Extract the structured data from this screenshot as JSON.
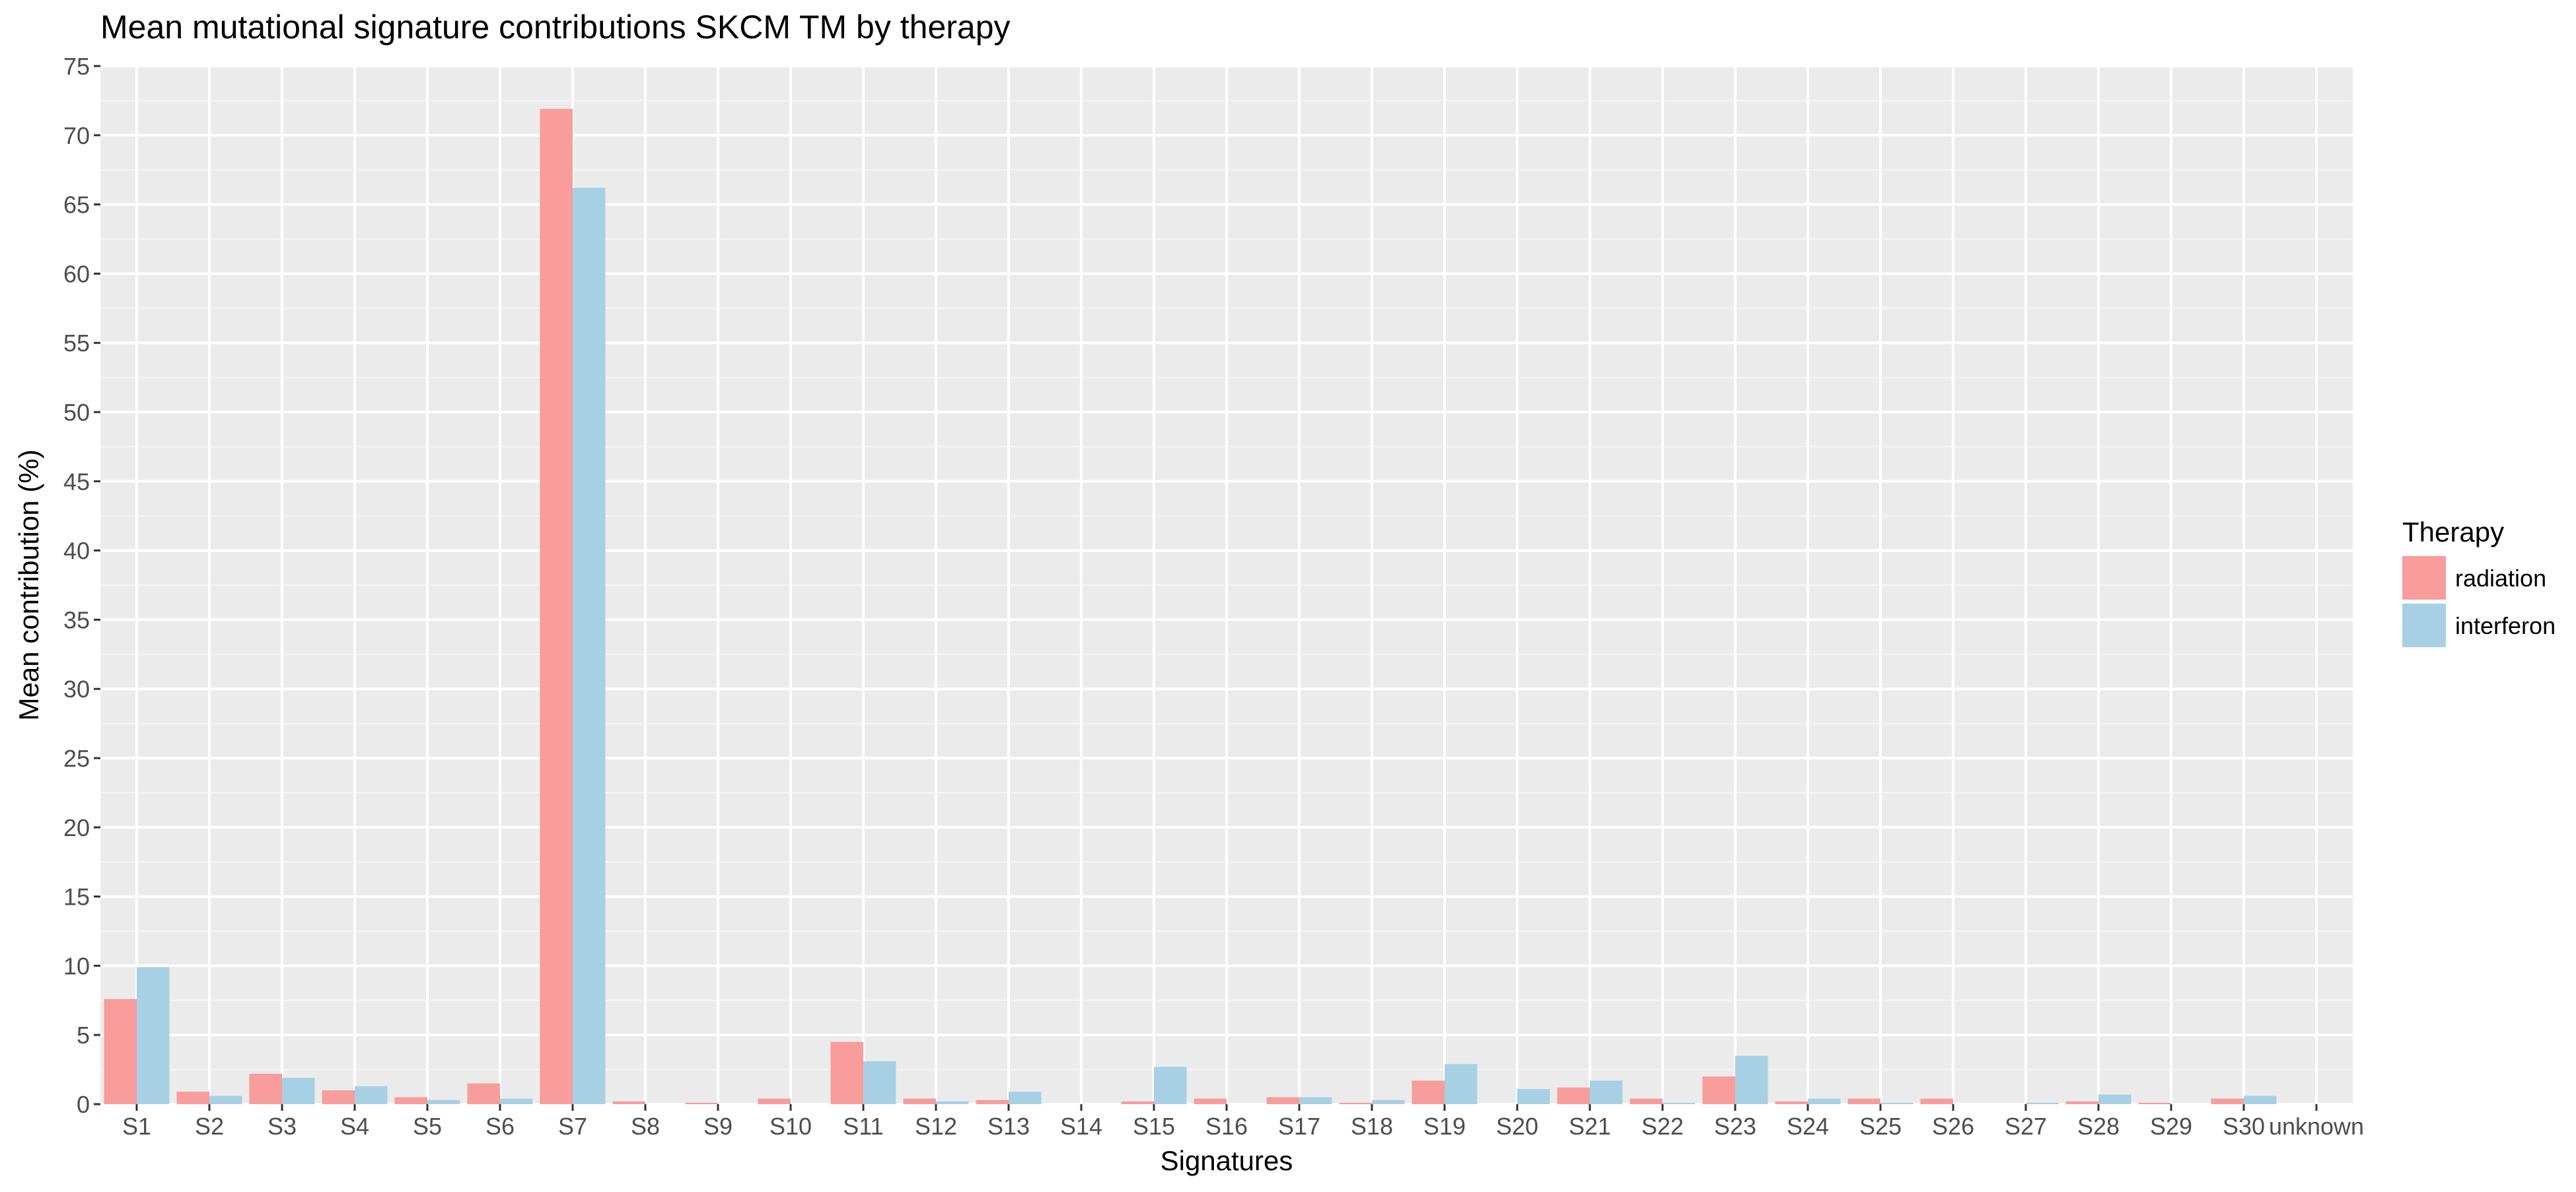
{
  "colors": {
    "panel_background": "#EBEBEB",
    "grid_line": "#FFFFFF",
    "axis_text": "#4D4D4D",
    "title_text": "#000000"
  },
  "chart_data": {
    "type": "bar",
    "title": "Mean mutational signature contributions SKCM TM by therapy",
    "xlabel": "Signatures",
    "ylabel": "Mean contribution (%)",
    "ylim": [
      0,
      75
    ],
    "yticks": [
      0,
      5,
      10,
      15,
      20,
      25,
      30,
      35,
      40,
      45,
      50,
      55,
      60,
      65,
      70,
      75
    ],
    "grid": true,
    "legend_title": "Therapy",
    "legend_position": "right",
    "categories": [
      "S1",
      "S2",
      "S3",
      "S4",
      "S5",
      "S6",
      "S7",
      "S8",
      "S9",
      "S10",
      "S11",
      "S12",
      "S13",
      "S14",
      "S15",
      "S16",
      "S17",
      "S18",
      "S19",
      "S20",
      "S21",
      "S22",
      "S23",
      "S24",
      "S25",
      "S26",
      "S27",
      "S28",
      "S29",
      "S30",
      "unknown"
    ],
    "series": [
      {
        "name": "radiation",
        "color": "#F89C9C",
        "values": [
          7.6,
          0.9,
          2.2,
          1.0,
          0.5,
          1.5,
          71.9,
          0.2,
          0.1,
          0.4,
          4.5,
          0.4,
          0.3,
          0.0,
          0.2,
          0.4,
          0.5,
          0.1,
          1.7,
          0.0,
          1.2,
          0.4,
          2.0,
          0.2,
          0.4,
          0.4,
          0.0,
          0.2,
          0.1,
          0.4,
          0.0
        ]
      },
      {
        "name": "interferon",
        "color": "#A8D0E4",
        "values": [
          9.9,
          0.6,
          1.9,
          1.3,
          0.3,
          0.4,
          66.2,
          0.0,
          0.0,
          0.0,
          3.1,
          0.2,
          0.9,
          0.0,
          2.7,
          0.0,
          0.5,
          0.3,
          2.9,
          1.1,
          1.7,
          0.1,
          3.5,
          0.4,
          0.1,
          0.0,
          0.1,
          0.7,
          0.0,
          0.6,
          0.0
        ]
      }
    ]
  }
}
